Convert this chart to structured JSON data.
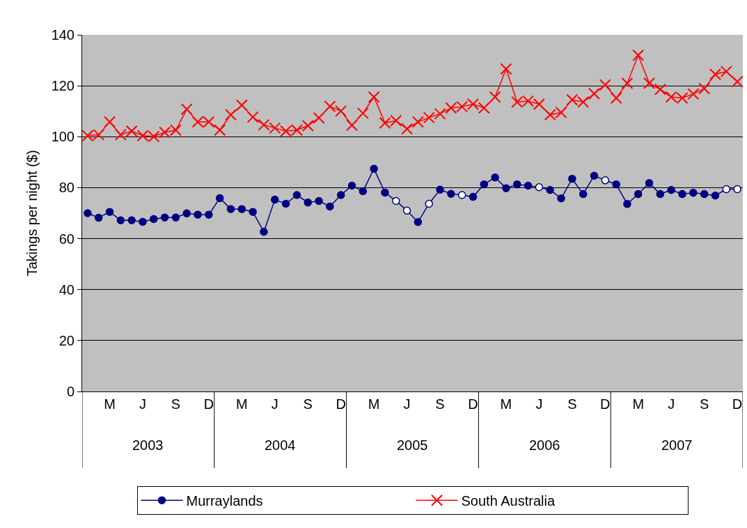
{
  "chart_data": {
    "type": "line",
    "ylabel": "Takings per night ($)",
    "categories": [
      null,
      null,
      "M",
      null,
      null,
      "J",
      null,
      null,
      "S",
      null,
      null,
      "D",
      null,
      null,
      "M",
      null,
      null,
      "J",
      null,
      null,
      "S",
      null,
      null,
      "D",
      null,
      null,
      "M",
      null,
      null,
      "J",
      null,
      null,
      "S",
      null,
      null,
      "D",
      null,
      null,
      "M",
      null,
      null,
      "J",
      null,
      null,
      "S",
      null,
      null,
      "D",
      null,
      null,
      "M",
      null,
      null,
      "J",
      null,
      null,
      "S",
      null,
      null,
      "D"
    ],
    "annotations": [
      "2003",
      "2004",
      "2005",
      "2006",
      "2007"
    ],
    "series": [
      {
        "name": "Murraylands",
        "color": "#000080",
        "marker": "circle",
        "colors": [
          "#000080",
          "#000080",
          "#000080",
          "#000080",
          "#000080",
          "#000080",
          "#000080",
          "#000080",
          "#000080",
          "#000080",
          "#000080",
          "#000080",
          "#000080",
          "#000080",
          "#000080",
          "#000080",
          "#000080",
          "#000080",
          "#000080",
          "#000080",
          "#000080",
          "#000080",
          "#000080",
          "#000080",
          "#000080",
          "#000080",
          "#000080",
          "#000080",
          "#ffffff",
          "#ffffff",
          "#000080",
          "#ffffff",
          "#000080",
          "#000080",
          "#ffffff",
          "#000080",
          "#000080",
          "#000080",
          "#000080",
          "#000080",
          "#000080",
          "#ffffff",
          "#000080",
          "#000080",
          "#000080",
          "#000080",
          "#000080",
          "#ffffff",
          "#000080",
          "#000080",
          "#000080",
          "#000080",
          "#000080",
          "#000080",
          "#000080",
          "#000080",
          "#000080",
          "#000080",
          "#ffffff",
          "#ffffff"
        ],
        "values": [
          70.0,
          68.2,
          70.5,
          67.2,
          67.2,
          66.6,
          67.7,
          68.3,
          68.3,
          69.9,
          69.4,
          69.4,
          75.9,
          71.6,
          71.6,
          70.5,
          62.7,
          75.3,
          73.7,
          77.1,
          74.2,
          74.8,
          72.6,
          77.1,
          80.8,
          78.6,
          87.4,
          78.1,
          74.8,
          71.0,
          66.5,
          73.7,
          79.2,
          77.6,
          77.1,
          76.4,
          81.3,
          84.0,
          79.8,
          81.3,
          80.8,
          80.2,
          79.1,
          75.8,
          83.5,
          77.5,
          84.7,
          82.9,
          81.3,
          73.6,
          77.5,
          81.8,
          77.5,
          79.1,
          77.5,
          78.0,
          77.5,
          76.9,
          79.4,
          79.4
        ]
      },
      {
        "name": "South Australia",
        "color": "#ff0000",
        "marker": "cross",
        "values": [
          100.4,
          100.8,
          105.8,
          100.8,
          102.2,
          100.4,
          100.1,
          101.7,
          102.6,
          110.8,
          105.8,
          105.8,
          102.6,
          108.6,
          112.4,
          107.7,
          104.7,
          103.4,
          102.2,
          102.6,
          104.3,
          107.4,
          111.9,
          110.1,
          104.5,
          109.2,
          115.6,
          105.4,
          106.3,
          103.1,
          105.8,
          107.5,
          109.0,
          111.3,
          111.8,
          112.8,
          111.3,
          115.6,
          126.6,
          113.6,
          114.0,
          112.8,
          108.6,
          109.5,
          114.5,
          113.6,
          116.9,
          120.4,
          115.2,
          121.0,
          132.0,
          121.0,
          118.6,
          115.6,
          115.2,
          116.8,
          118.9,
          124.5,
          125.6,
          121.6
        ]
      }
    ],
    "ylim": [
      0,
      140
    ],
    "yticks": [
      0,
      20,
      40,
      60,
      80,
      100,
      120,
      140
    ],
    "grid": "y",
    "legend": "bottom"
  }
}
